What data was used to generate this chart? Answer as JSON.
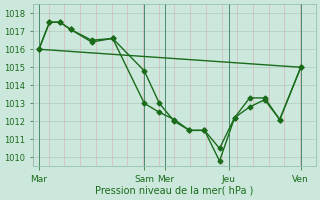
{
  "xlabel": "Pression niveau de la mer( hPa )",
  "ylim": [
    1009.5,
    1018.5
  ],
  "xlim": [
    -0.2,
    9.2
  ],
  "yticks": [
    1010,
    1011,
    1012,
    1013,
    1014,
    1015,
    1016,
    1017,
    1018
  ],
  "bg_color": "#cce8dd",
  "plot_bg_color": "#cce8dd",
  "line_color": "#1a6b1a",
  "xtick_labels": [
    "Mar",
    "Sam",
    "Mer",
    "Jeu",
    "Ven"
  ],
  "xtick_positions": [
    0.0,
    3.5,
    4.2,
    6.3,
    8.7
  ],
  "vline_positions": [
    0.0,
    3.5,
    4.2,
    6.3,
    8.7
  ],
  "line1_x": [
    0.0,
    0.35,
    0.7,
    1.05,
    1.75,
    2.45,
    3.5,
    4.0,
    4.5,
    5.0,
    5.5,
    6.0,
    6.5,
    7.0,
    7.5,
    8.0,
    8.7
  ],
  "line1_y": [
    1016.0,
    1017.5,
    1017.5,
    1017.1,
    1016.5,
    1016.6,
    1014.8,
    1013.0,
    1012.0,
    1011.5,
    1011.5,
    1009.8,
    1012.2,
    1012.8,
    1013.2,
    1012.1,
    1015.0
  ],
  "line2_x": [
    0.0,
    0.35,
    0.7,
    1.05,
    1.75,
    2.45,
    3.5,
    4.0,
    4.5,
    5.0,
    5.5,
    6.0,
    6.5,
    7.0,
    7.5,
    8.0,
    8.7
  ],
  "line2_y": [
    1016.0,
    1017.5,
    1017.5,
    1017.1,
    1016.4,
    1016.6,
    1013.0,
    1012.5,
    1012.1,
    1011.5,
    1011.5,
    1010.5,
    1012.2,
    1013.3,
    1013.3,
    1012.1,
    1015.0
  ],
  "line3_x": [
    0.0,
    8.7
  ],
  "line3_y": [
    1016.0,
    1015.0
  ],
  "marker": "D",
  "marker_size": 2.5,
  "line_width": 1.0,
  "ytick_fontsize": 6,
  "xtick_fontsize": 6.5,
  "xlabel_fontsize": 7
}
